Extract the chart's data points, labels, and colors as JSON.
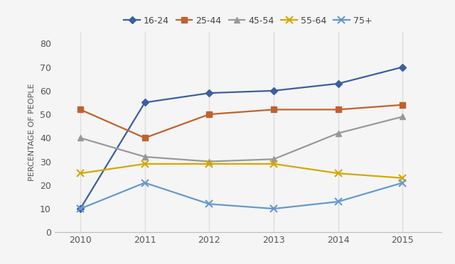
{
  "years": [
    2010,
    2011,
    2012,
    2013,
    2014,
    2015
  ],
  "series": {
    "16-24": [
      10,
      55,
      59,
      60,
      63,
      70
    ],
    "25-44": [
      52,
      40,
      50,
      52,
      52,
      54
    ],
    "45-54": [
      40,
      32,
      30,
      31,
      42,
      49
    ],
    "55-64": [
      25,
      29,
      29,
      29,
      25,
      23
    ],
    "75+": [
      10,
      21,
      12,
      10,
      13,
      21
    ]
  },
  "colors": {
    "16-24": "#3B5FA0",
    "25-44": "#C0622E",
    "45-54": "#999999",
    "55-64": "#D4A800",
    "75+": "#6699CC"
  },
  "marker_map": {
    "16-24": "D",
    "25-44": "s",
    "45-54": "^",
    "55-64": "x",
    "75+": "x"
  },
  "marker_sizes": {
    "16-24": 5,
    "25-44": 6,
    "45-54": 6,
    "55-64": 7,
    "75+": 7
  },
  "ylabel": "PERCENTAGE OF PEOPLE",
  "ylim": [
    0,
    85
  ],
  "yticks": [
    0,
    10,
    20,
    30,
    40,
    50,
    60,
    70,
    80
  ],
  "xlim": [
    2009.6,
    2015.6
  ],
  "background_color": "#F5F5F5",
  "plot_bg_color": "#F5F5F5",
  "grid_color": "#DDDDDD",
  "legend_order": [
    "16-24",
    "25-44",
    "45-54",
    "55-64",
    "75+"
  ],
  "linewidth": 1.6,
  "tick_fontsize": 9,
  "ylabel_fontsize": 8,
  "legend_fontsize": 9
}
